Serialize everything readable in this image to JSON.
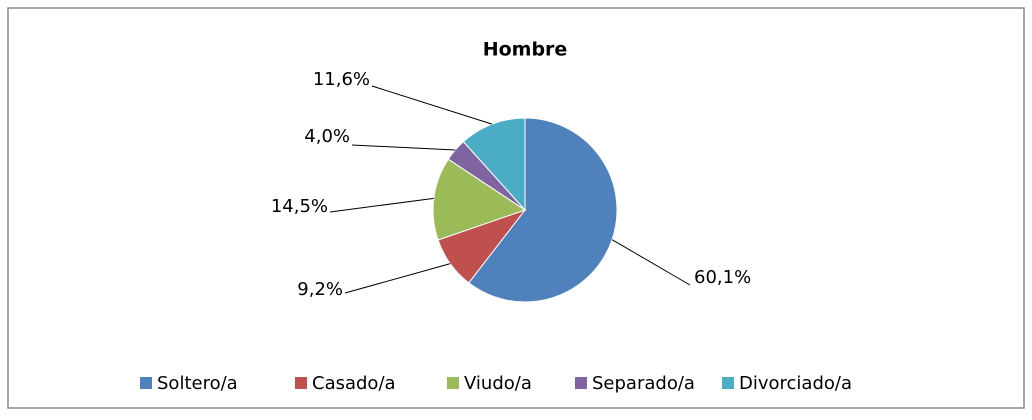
{
  "chart_data": {
    "type": "pie",
    "title": "Hombre",
    "categories": [
      "Soltero/a",
      "Casado/a",
      "Viudo/a",
      "Separado/a",
      "Divorciado/a"
    ],
    "values": [
      60.1,
      9.2,
      14.5,
      4.0,
      11.6
    ],
    "value_labels": [
      "60,1%",
      "9,2%",
      "14,5%",
      "4,0%",
      "11,6%"
    ],
    "colors": [
      "#4f81bd",
      "#c0504d",
      "#9bbb59",
      "#8064a2",
      "#4bacc6"
    ],
    "legend": "bottom"
  }
}
